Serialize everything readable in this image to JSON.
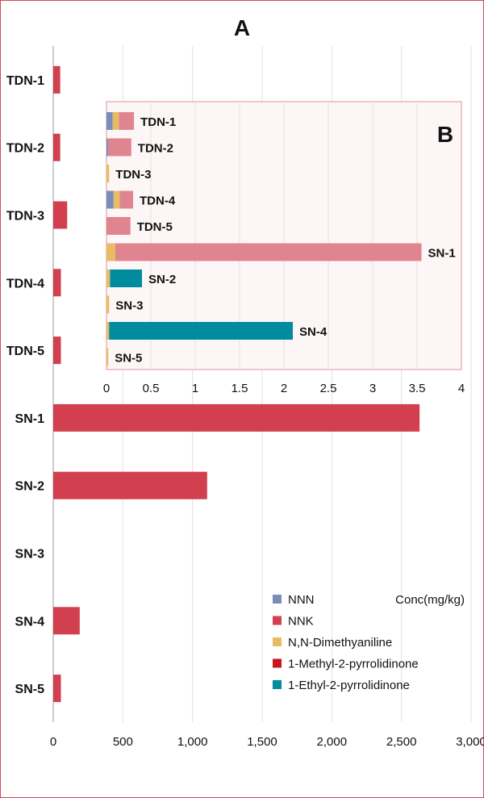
{
  "chart_data": [
    {
      "panel": "A",
      "type": "bar",
      "orientation": "horizontal",
      "unit_label": "Conc(mg/kg)",
      "categories": [
        "TDN-1",
        "TDN-2",
        "TDN-3",
        "TDN-4",
        "TDN-5",
        "SN-1",
        "SN-2",
        "SN-3",
        "SN-4",
        "SN-5"
      ],
      "series": [
        {
          "name": "NNK",
          "color": "#d2404f",
          "values": [
            50,
            50,
            100,
            55,
            55,
            2630,
            1105,
            0,
            190,
            55
          ]
        }
      ],
      "xlim": [
        0,
        3000
      ],
      "xticks": [
        0,
        500,
        1000,
        1500,
        2000,
        2500,
        3000
      ],
      "xtick_labels": [
        "0",
        "500",
        "1,000",
        "1,500",
        "2,000",
        "2,500",
        "3,000"
      ],
      "grid": true
    },
    {
      "panel": "B",
      "type": "bar",
      "orientation": "horizontal",
      "stacked": true,
      "categories": [
        "TDN-1",
        "TDN-2",
        "TDN-3",
        "TDN-4",
        "TDN-5",
        "SN-1",
        "SN-2",
        "SN-3",
        "SN-4",
        "SN-5"
      ],
      "series": [
        {
          "name": "NNN",
          "color": "#7a8db8",
          "values": [
            0.07,
            0.02,
            0,
            0.08,
            0,
            0,
            0,
            0,
            0,
            0
          ]
        },
        {
          "name": "N,N-Dimethyaniline",
          "color": "#e8bc62",
          "values": [
            0.07,
            0,
            0.03,
            0.07,
            0,
            0.1,
            0.04,
            0.03,
            0.03,
            0.02
          ]
        },
        {
          "name": "NNK",
          "color": "#e08590",
          "values": [
            0.17,
            0.26,
            0,
            0.15,
            0.27,
            3.45,
            0,
            0,
            0,
            0
          ]
        },
        {
          "name": "1-Ethyl-2-pyrrolidinone",
          "color": "#008c9e",
          "values": [
            0,
            0,
            0,
            0,
            0,
            0,
            0.36,
            0,
            2.07,
            0
          ]
        }
      ],
      "xlim": [
        0,
        4
      ],
      "xticks": [
        0,
        0.5,
        1,
        1.5,
        2,
        2.5,
        3,
        3.5,
        4
      ],
      "xtick_labels": [
        "0",
        "0.5",
        "1",
        "1.5",
        "2",
        "2.5",
        "3",
        "3.5",
        "4"
      ],
      "grid": true
    }
  ],
  "legend": [
    {
      "name": "NNN",
      "color": "#7a8db8"
    },
    {
      "name": "NNK",
      "color": "#d2404f"
    },
    {
      "name": "N,N-Dimethyaniline",
      "color": "#e8bc62"
    },
    {
      "name": "1-Methyl-2-pyrrolidinone",
      "color": "#c8161e"
    },
    {
      "name": "1-Ethyl-2-pyrrolidinone",
      "color": "#008c9e"
    }
  ]
}
